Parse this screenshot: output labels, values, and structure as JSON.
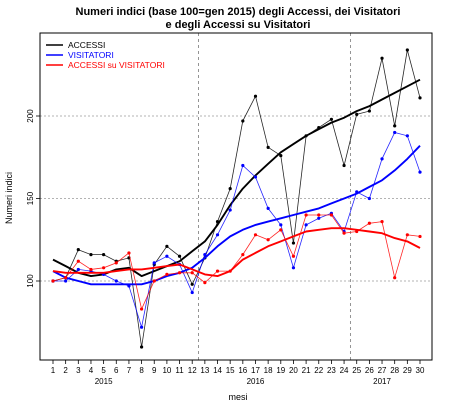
{
  "chart_data": {
    "type": "line",
    "title_line1": "Numeri indici (base 100=gen 2015) degli Accessi, dei Visitatori",
    "title_line2": "e degli Accessi su Visitatori",
    "xlabel": "mesi",
    "ylabel": "Numeri indici",
    "x": [
      1,
      2,
      3,
      4,
      5,
      6,
      7,
      8,
      9,
      10,
      11,
      12,
      13,
      14,
      15,
      16,
      17,
      18,
      19,
      20,
      21,
      22,
      23,
      24,
      25,
      26,
      27,
      28,
      29,
      30
    ],
    "xlim": [
      1,
      30
    ],
    "ylim": [
      60,
      240
    ],
    "yticks": [
      100,
      150,
      200
    ],
    "year_labels": [
      {
        "label": "2015",
        "x": 5
      },
      {
        "label": "2016",
        "x": 17
      },
      {
        "label": "2017",
        "x": 27
      }
    ],
    "grid": true,
    "vertical_dividers": [
      12.5,
      24.5
    ],
    "legend_position": "top-left",
    "series": [
      {
        "name": "ACCESSI",
        "color": "#000000",
        "values": [
          100,
          102,
          119,
          116,
          116,
          112,
          114,
          60,
          110,
          121,
          115,
          98,
          114,
          136,
          156,
          197,
          212,
          181,
          176,
          123,
          188,
          193,
          198,
          170,
          201,
          203,
          235,
          194,
          240,
          211
        ],
        "trend": [
          113,
          109,
          105,
          103,
          104,
          107,
          108,
          103,
          106,
          109,
          112,
          118,
          124,
          134,
          146,
          156,
          164,
          171,
          178,
          183,
          188,
          192,
          196,
          199,
          203,
          206,
          210,
          214,
          218,
          222
        ]
      },
      {
        "name": "VISITATORI",
        "color": "#0000ff",
        "values": [
          100,
          100,
          107,
          106,
          104,
          100,
          97,
          72,
          111,
          115,
          110,
          93,
          116,
          128,
          143,
          170,
          163,
          144,
          134,
          108,
          134,
          138,
          141,
          130,
          154,
          150,
          174,
          190,
          188,
          166
        ],
        "trend": [
          106,
          102,
          100,
          98,
          98,
          98,
          98,
          98,
          100,
          103,
          105,
          108,
          114,
          121,
          127,
          131,
          134,
          136,
          138,
          140,
          142,
          144,
          147,
          150,
          153,
          157,
          161,
          167,
          174,
          182
        ]
      },
      {
        "name": "ACCESSI su VISITATORI",
        "color": "#ff0000",
        "values": [
          100,
          102,
          112,
          107,
          108,
          111,
          117,
          83,
          100,
          104,
          105,
          105,
          99,
          106,
          106,
          116,
          128,
          125,
          131,
          115,
          140,
          140,
          140,
          129,
          130,
          135,
          136,
          102,
          128,
          127
        ],
        "trend": [
          106,
          105,
          105,
          105,
          105,
          106,
          107,
          107,
          108,
          109,
          110,
          107,
          104,
          103,
          106,
          113,
          117,
          121,
          124,
          127,
          130,
          131,
          132,
          132,
          131,
          130,
          129,
          126,
          124,
          120
        ]
      }
    ]
  }
}
